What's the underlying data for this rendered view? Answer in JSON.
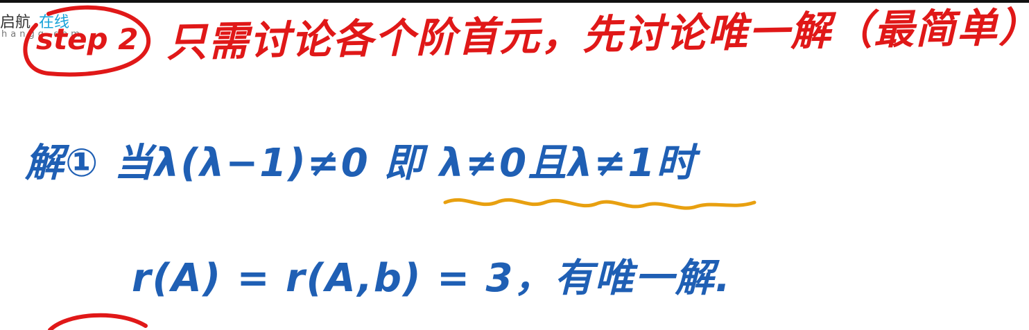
{
  "watermark": {
    "brand_part1": "启航",
    "brand_part2": "在线",
    "url": "hangg.com"
  },
  "colors": {
    "red_ink": "#e01818",
    "blue_ink": "#1f5fb4",
    "orange_ink": "#e8a010"
  },
  "step": {
    "label": "step 2",
    "text": "只需讨论各个阶首元，先讨论唯一解（最简单）"
  },
  "solution": {
    "line1": "解① 当λ(λ−1)≠0 即 λ≠0且λ≠1时",
    "line2": "r(A) = r(A,b) = 3，有唯一解."
  }
}
